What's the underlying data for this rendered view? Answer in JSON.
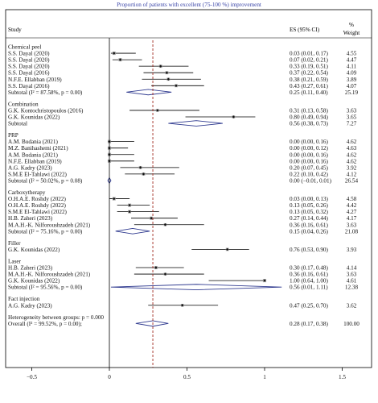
{
  "chart_data": {
    "type": "forest",
    "title": "Proportion of patients with excellent (75-100 %) improvement",
    "columns": {
      "study": "Study",
      "es": "ES (95% CI)",
      "weight_line1": "%",
      "weight_line2": "Weight"
    },
    "xlim": [
      -0.5,
      1.5
    ],
    "xticks": [
      {
        "value": -0.5,
        "label": "−0.5"
      },
      {
        "value": 0,
        "label": "0"
      },
      {
        "value": 0.5,
        "label": "0.5"
      },
      {
        "value": 1,
        "label": "1"
      },
      {
        "value": 1.5,
        "label": "1.5"
      }
    ],
    "reference_line": 0.28,
    "groups": [
      {
        "name": "Chemical peel",
        "studies": [
          {
            "label": "S.S. Dayal (2020)",
            "es": 0.03,
            "lo": 0.01,
            "hi": 0.17,
            "es_text": "0.03 (0.01, 0.17)",
            "weight": "4.55"
          },
          {
            "label": "S.S. Dayal (2020)",
            "es": 0.07,
            "lo": 0.02,
            "hi": 0.21,
            "es_text": "0.07 (0.02, 0.21)",
            "weight": "4.47"
          },
          {
            "label": "S.S. Dayal (2020)",
            "es": 0.33,
            "lo": 0.19,
            "hi": 0.51,
            "es_text": "0.33 (0.19, 0.51)",
            "weight": "4.11"
          },
          {
            "label": "S.S. Dayal (2016)",
            "es": 0.37,
            "lo": 0.22,
            "hi": 0.54,
            "es_text": "0.37 (0.22, 0.54)",
            "weight": "4.09"
          },
          {
            "label": "N.F.E. Ellabban (2019)",
            "es": 0.38,
            "lo": 0.21,
            "hi": 0.59,
            "es_text": "0.38 (0.21, 0.59)",
            "weight": "3.89"
          },
          {
            "label": "S.S. Dayal (2016)",
            "es": 0.43,
            "lo": 0.27,
            "hi": 0.61,
            "es_text": "0.43 (0.27, 0.61)",
            "weight": "4.07"
          }
        ],
        "subtotal": {
          "label": "Subtotal (I² = 87.58%, p = 0.00)",
          "es": 0.25,
          "lo": 0.11,
          "hi": 0.4,
          "es_text": "0.25 (0.11, 0.40)",
          "weight": "25.19"
        }
      },
      {
        "name": "Combination",
        "studies": [
          {
            "label": "G.K. Kontochristopoulos (2016)",
            "es": 0.31,
            "lo": 0.13,
            "hi": 0.58,
            "es_text": "0.31 (0.13, 0.58)",
            "weight": "3.63"
          },
          {
            "label": "G.K. Kounidas (2022)",
            "es": 0.8,
            "lo": 0.49,
            "hi": 0.94,
            "es_text": "0.80 (0.49, 0.94)",
            "weight": "3.65"
          }
        ],
        "subtotal": {
          "label": "Subtotal",
          "es": 0.56,
          "lo": 0.38,
          "hi": 0.73,
          "es_text": "0.56 (0.38, 0.73)",
          "weight": "7.27"
        }
      },
      {
        "name": "PRP",
        "studies": [
          {
            "label": "A.M. Budania (2021)",
            "es": 0.0,
            "lo": 0.0,
            "hi": 0.16,
            "es_text": "0.00 (0.00, 0.16)",
            "weight": "4.62"
          },
          {
            "label": "M.Z. Banihashemi (2021)",
            "es": 0.0,
            "lo": 0.0,
            "hi": 0.12,
            "es_text": "0.00 (0.00, 0.12)",
            "weight": "4.63"
          },
          {
            "label": "A.M. Budania (2021)",
            "es": 0.0,
            "lo": 0.0,
            "hi": 0.16,
            "es_text": "0.00 (0.00, 0.16)",
            "weight": "4.62"
          },
          {
            "label": "N.F.E. Ellabban (2019)",
            "es": 0.0,
            "lo": 0.0,
            "hi": 0.16,
            "es_text": "0.00 (0.00, 0.16)",
            "weight": "4.62"
          },
          {
            "label": "A.G. Kadry (2023)",
            "es": 0.2,
            "lo": 0.07,
            "hi": 0.45,
            "es_text": "0.20 (0.07, 0.45)",
            "weight": "3.92"
          },
          {
            "label": "S.M.E El-Tahlawi (2022)",
            "es": 0.22,
            "lo": 0.1,
            "hi": 0.42,
            "es_text": "0.22 (0.10, 0.42)",
            "weight": "4.12"
          }
        ],
        "subtotal": {
          "label": "Subtotal (I² = 50.02%, p = 0.08)",
          "es": 0.0,
          "lo": -0.01,
          "hi": 0.01,
          "es_text": "0.00 (−0.01, 0.01)",
          "weight": "26.54"
        }
      },
      {
        "name": "Carboxytherapy",
        "studies": [
          {
            "label": "O.H.A.E. Roshdy (2022)",
            "es": 0.03,
            "lo": 0.0,
            "hi": 0.13,
            "es_text": "0.03 (0.00, 0.13)",
            "weight": "4.58"
          },
          {
            "label": "O.H.A.E. Roshdy (2022)",
            "es": 0.13,
            "lo": 0.05,
            "hi": 0.26,
            "es_text": "0.13 (0.05, 0.26)",
            "weight": "4.42"
          },
          {
            "label": "S.M.E El-Tahlawi (2022)",
            "es": 0.13,
            "lo": 0.05,
            "hi": 0.32,
            "es_text": "0.13 (0.05, 0.32)",
            "weight": "4.27"
          },
          {
            "label": "H.B. Zaheri (2023)",
            "es": 0.27,
            "lo": 0.14,
            "hi": 0.44,
            "es_text": "0.27 (0.14, 0.44)",
            "weight": "4.17"
          },
          {
            "label": "M.A.H.-K. Nilforoushzadeh (2021)",
            "es": 0.36,
            "lo": 0.16,
            "hi": 0.61,
            "es_text": "0.36 (0.16, 0.61)",
            "weight": "3.63"
          }
        ],
        "subtotal": {
          "label": "Subtotal (I² = 75.16%, p = 0.00)",
          "es": 0.15,
          "lo": 0.04,
          "hi": 0.26,
          "es_text": "0.15 (0.04, 0.26)",
          "weight": "21.08"
        }
      },
      {
        "name": "Filler",
        "studies": [
          {
            "label": "G.K. Kounidas (2022)",
            "es": 0.76,
            "lo": 0.53,
            "hi": 0.9,
            "es_text": "0.76 (0.53, 0.90)",
            "weight": "3.93"
          }
        ],
        "subtotal": null
      },
      {
        "name": "Laser",
        "studies": [
          {
            "label": "H.B. Zaheri (2023)",
            "es": 0.3,
            "lo": 0.17,
            "hi": 0.48,
            "es_text": "0.30 (0.17, 0.48)",
            "weight": "4.14"
          },
          {
            "label": "M.A.H.-K. Nilforoushzadeh (2021)",
            "es": 0.36,
            "lo": 0.16,
            "hi": 0.61,
            "es_text": "0.36 (0.16, 0.61)",
            "weight": "3.63"
          },
          {
            "label": "G.K. Kounidas (2022)",
            "es": 1.0,
            "lo": 0.64,
            "hi": 1.0,
            "es_text": "1.00 (0.64, 1.00)",
            "weight": "4.61"
          }
        ],
        "subtotal": {
          "label": "Subtotal (I² = 95.56%, p = 0.00)",
          "es": 0.56,
          "lo": 0.01,
          "hi": 1.11,
          "es_text": "0.56 (0.01, 1.11)",
          "weight": "12.38"
        }
      },
      {
        "name": "Fact injection",
        "studies": [
          {
            "label": "A.G. Kadry (2023)",
            "es": 0.47,
            "lo": 0.25,
            "hi": 0.7,
            "es_text": "0.47 (0.25, 0.70)",
            "weight": "3.62"
          }
        ],
        "subtotal": null
      }
    ],
    "heterogeneity": "Heterogeneity between groups: p = 0.000",
    "overall": {
      "label": "Overall (I² = 99.52%, p = 0.00);",
      "es": 0.28,
      "lo": 0.17,
      "hi": 0.38,
      "es_text": "0.28 (0.17, 0.38)",
      "weight": "100.00"
    },
    "colors": {
      "diamond": "#2f3a8f",
      "title": "#3a45a8",
      "reference": "#a0281e",
      "ink": "#111111"
    }
  }
}
